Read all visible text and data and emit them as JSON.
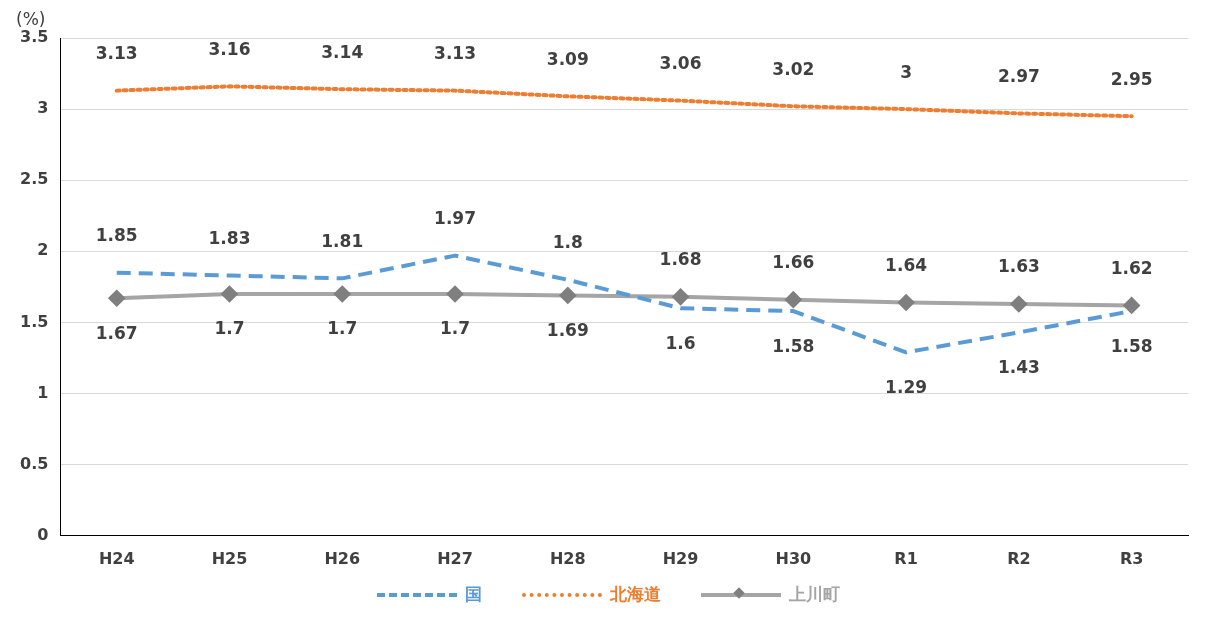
{
  "chart_data": {
    "type": "line",
    "ylabel": "(%)",
    "categories": [
      "H24",
      "H25",
      "H26",
      "H27",
      "H28",
      "H29",
      "H30",
      "R1",
      "R2",
      "R3"
    ],
    "series": [
      {
        "name": "国",
        "color": "#5b9bd5",
        "line_style": "dashed",
        "marker": "none",
        "values": [
          1.85,
          1.83,
          1.81,
          1.97,
          1.8,
          1.6,
          1.58,
          1.29,
          1.43,
          1.58
        ]
      },
      {
        "name": "北海道",
        "color": "#ed7d31",
        "line_style": "dotted",
        "marker": "none",
        "values": [
          3.13,
          3.16,
          3.14,
          3.13,
          3.09,
          3.06,
          3.02,
          3,
          2.97,
          2.95
        ]
      },
      {
        "name": "上川町",
        "color": "#a5a5a5",
        "line_style": "solid",
        "marker": "diamond",
        "values": [
          1.67,
          1.7,
          1.7,
          1.7,
          1.69,
          1.68,
          1.66,
          1.64,
          1.63,
          1.62
        ]
      }
    ],
    "ylim": [
      0,
      3.5
    ],
    "yticks": [
      0,
      0.5,
      1,
      1.5,
      2,
      2.5,
      3,
      3.5
    ],
    "grid": "y",
    "legend": "bottom",
    "data_labels": true
  }
}
